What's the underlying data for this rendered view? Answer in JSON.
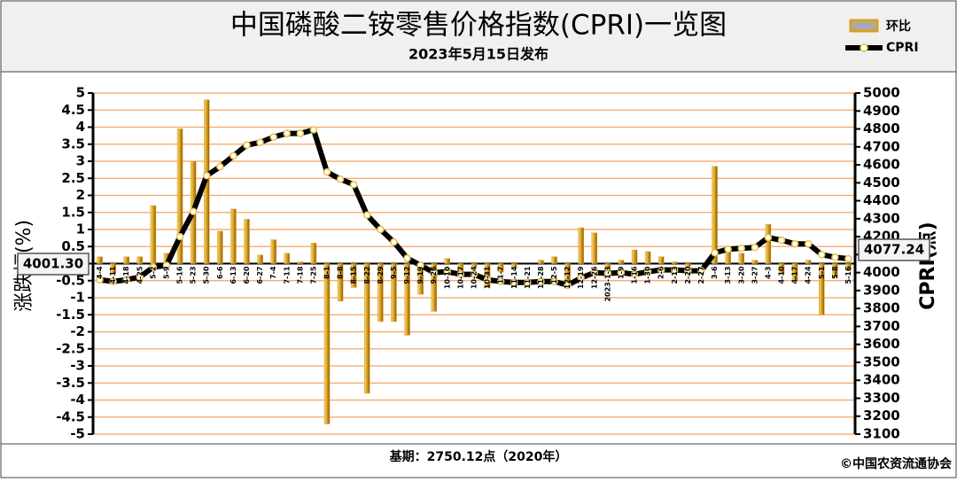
{
  "chart_data": {
    "type": "bar_line",
    "title": "中国磷酸二铵零售价格指数(CPRI)一览图",
    "subtitle": "2023年5月15日发布",
    "ylabel": "涨跌幅(%)",
    "y2label": "CPRI(点)",
    "footer": "基期：2750.12点（2020年）",
    "source": "©中国农资流通协会",
    "annotations": [
      "4001.30",
      "4077.24"
    ],
    "categories": [
      "4-4",
      "4-11",
      "4-18",
      "4-25",
      "5-2",
      "5-9",
      "5-16",
      "5-23",
      "5-30",
      "6-6",
      "6-13",
      "6-20",
      "6-27",
      "7-4",
      "7-11",
      "7-18",
      "7-25",
      "8-1",
      "8-8",
      "8-15",
      "8-22",
      "8-29",
      "9-5",
      "9-12",
      "9-19",
      "9-26",
      "10-10",
      "10-17",
      "10-24",
      "10-31",
      "11-7",
      "11-14",
      "11-21",
      "11-28",
      "12-5",
      "12-12",
      "12-19",
      "12-26",
      "2023-1-3",
      "1-9",
      "1-16",
      "1-30",
      "2-6",
      "2-13",
      "2-20",
      "2-27",
      "3-6",
      "3-13",
      "3-20",
      "3-27",
      "4-3",
      "4-10",
      "4-17",
      "4-24",
      "5-1",
      "5-8",
      "5-16"
    ],
    "series": [
      {
        "name": "环比",
        "color": "#d9a020",
        "axis": "y",
        "kind": "bar",
        "values": [
          0.2,
          -0.3,
          0.2,
          0.2,
          1.7,
          0.3,
          3.95,
          3.0,
          4.8,
          0.95,
          1.6,
          1.3,
          0.25,
          0.7,
          0.3,
          0.05,
          0.6,
          -4.7,
          -1.1,
          -0.7,
          -3.8,
          -1.7,
          -1.7,
          -2.1,
          -0.9,
          -1.4,
          0.15,
          -0.4,
          -0.1,
          -0.7,
          -0.25,
          -0.1,
          0,
          0.1,
          0.2,
          -0.5,
          1.05,
          0.9,
          -0.15,
          0.1,
          0.4,
          0.35,
          0.2,
          0.05,
          -0.1,
          0,
          2.85,
          0.5,
          0.3,
          0.1,
          1.15,
          -0.3,
          -0.5,
          0.1,
          -1.5,
          -0.4,
          -0.2
        ]
      },
      {
        "name": "CPRI",
        "color": "#000000",
        "axis": "y2",
        "kind": "line",
        "values": [
          3960,
          3950,
          3960,
          3975,
          4030,
          4040,
          4200,
          4340,
          4540,
          4590,
          4650,
          4710,
          4725,
          4755,
          4775,
          4775,
          4795,
          4560,
          4520,
          4490,
          4320,
          4240,
          4170,
          4080,
          4040,
          4000,
          4005,
          3990,
          3990,
          3960,
          3950,
          3945,
          3945,
          3950,
          3950,
          3930,
          3970,
          4000,
          3995,
          4000,
          3990,
          4005,
          4015,
          4015,
          4010,
          4010,
          4110,
          4130,
          4135,
          4140,
          4195,
          4180,
          4160,
          4160,
          4100,
          4085,
          4077.24
        ]
      }
    ],
    "ylim": [
      -5,
      5
    ],
    "yticks": [
      -5,
      -4.5,
      -4,
      -3.5,
      -3,
      -2.5,
      -2,
      -1.5,
      -1,
      -0.5,
      0,
      0.5,
      1,
      1.5,
      2,
      2.5,
      3,
      3.5,
      4,
      4.5,
      5
    ],
    "y2lim": [
      3100,
      5000
    ],
    "y2ticks": [
      3100,
      3200,
      3300,
      3400,
      3500,
      3600,
      3700,
      3800,
      3900,
      4000,
      4100,
      4200,
      4300,
      4400,
      4500,
      4600,
      4700,
      4800,
      4900,
      5000
    ],
    "grid": true,
    "grid_color": "#f4a460",
    "legend": "top-right"
  }
}
